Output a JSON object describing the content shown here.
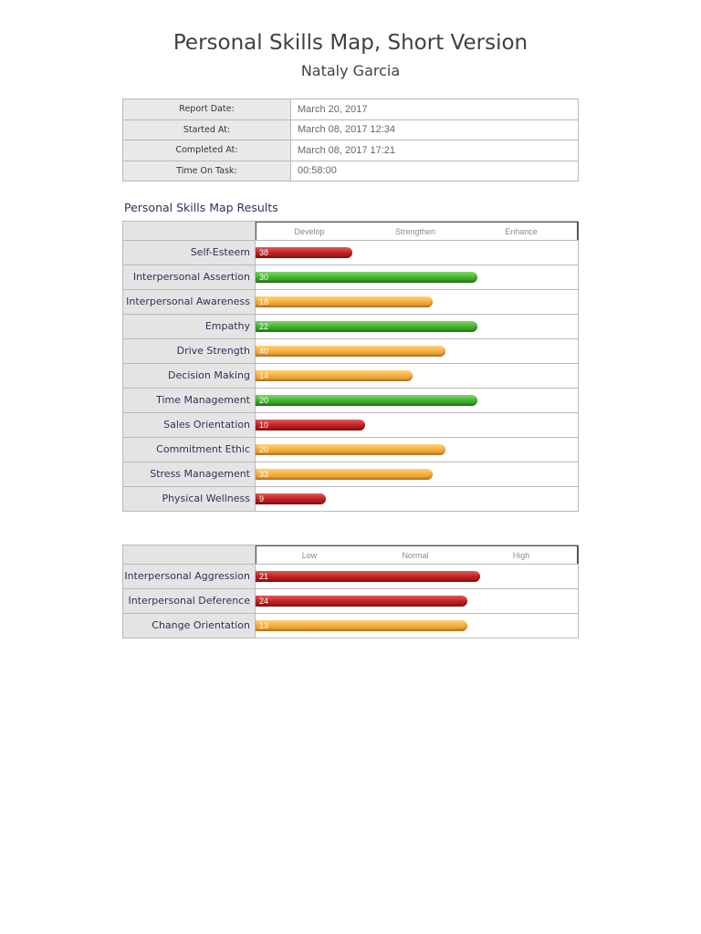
{
  "title": "Personal Skills Map, Short Version",
  "name": "Nataly Garcia",
  "info": [
    {
      "label": "Report Date:",
      "value": "March 20, 2017"
    },
    {
      "label": "Started At:",
      "value": "March 08, 2017 12:34"
    },
    {
      "label": "Completed At:",
      "value": "March 08, 2017 17:21"
    },
    {
      "label": "Time On Task:",
      "value": "00:58:00"
    }
  ],
  "results_title": "Personal Skills Map Results",
  "chart_data": [
    {
      "type": "bar",
      "scale": [
        "Develop",
        "Strengthen",
        "Enhance"
      ],
      "categories": [
        "Self-Esteem",
        "Interpersonal Assertion",
        "Interpersonal Awareness",
        "Empathy",
        "Drive Strength",
        "Decision Making",
        "Time Management",
        "Sales Orientation",
        "Commitment Ethic",
        "Stress Management",
        "Physical Wellness"
      ],
      "values": [
        "38",
        "30",
        "18",
        "22",
        "40",
        "14",
        "20",
        "10",
        "20",
        "33",
        "9"
      ],
      "level": [
        0.3,
        0.69,
        0.55,
        0.69,
        0.59,
        0.49,
        0.69,
        0.34,
        0.59,
        0.55,
        0.22
      ],
      "colors": [
        "#c0201f",
        "#3fb02a",
        "#f4aa3a",
        "#3fb02a",
        "#f4aa3a",
        "#f4aa3a",
        "#3fb02a",
        "#c0201f",
        "#f4aa3a",
        "#f4aa3a",
        "#c0201f"
      ]
    },
    {
      "type": "bar",
      "scale": [
        "Low",
        "Normal",
        "High"
      ],
      "categories": [
        "Interpersonal Aggression",
        "Interpersonal Deference",
        "Change Orientation"
      ],
      "values": [
        "21",
        "24",
        "13"
      ],
      "level": [
        0.7,
        0.66,
        0.66
      ],
      "colors": [
        "#c0201f",
        "#c0201f",
        "#f4aa3a"
      ]
    }
  ]
}
